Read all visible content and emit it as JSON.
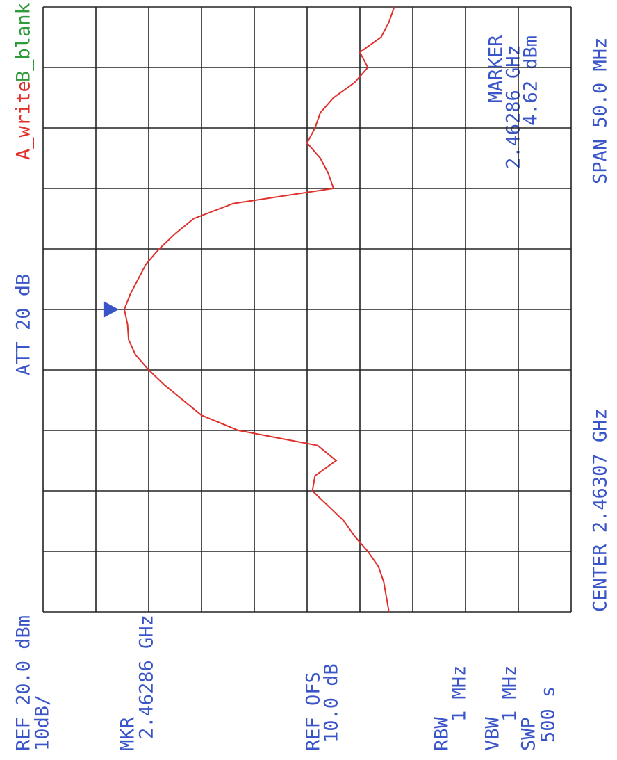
{
  "screen": {
    "ref": "REF 20.0 dBm",
    "scale": "10dB/",
    "att": "ATT 20 dB",
    "trace_a": "A_write",
    "trace_b": "B_blank",
    "mkr_label": "MKR",
    "mkr_freq": "2.46286 GHz",
    "ref_ofs_label": "REF OFS",
    "ref_ofs": "10.0 dB",
    "rbw_label": "RBW",
    "rbw": "1 MHz",
    "vbw_label": "VBW",
    "vbw": "1 MHz",
    "swp_label": "SWP",
    "swp": "500 s",
    "center": "CENTER 2.46307 GHz",
    "span": "SPAN 50.0 MHz",
    "marker_title": "MARKER",
    "marker_freq": "2.46286 GHz",
    "marker_level": "4.62 dBm"
  },
  "chart_data": {
    "type": "line",
    "color": "#e0302c",
    "ylim": [
      -80,
      20
    ],
    "grid": true,
    "values": [
      -45.5,
      -45,
      -44.5,
      -43.5,
      -41.5,
      -39,
      -37,
      -34,
      -31,
      -31.5,
      -35.5,
      -32,
      -17,
      -10,
      -6.5,
      -3,
      0,
      2.5,
      3.8,
      4,
      4.62,
      3.5,
      2,
      0.5,
      -2,
      -5,
      -8.5,
      -16,
      -35,
      -34,
      -32.5,
      -30,
      -31.5,
      -32.5,
      -35,
      -39,
      -41.5,
      -40,
      -44,
      -45.5,
      -46.5
    ]
  }
}
